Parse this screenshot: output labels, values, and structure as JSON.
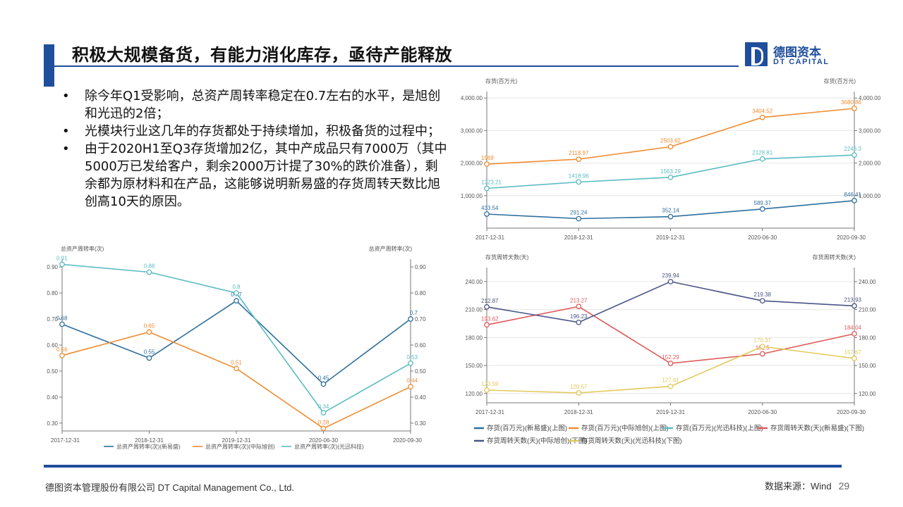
{
  "slide": {
    "title": "积极大规模备货，有能力消化库存，亟待产能释放",
    "logo_cn": "德图资本",
    "logo_en": "DT CAPITAL",
    "bullets": [
      "除今年Q1受影响，总资产周转率稳定在0.7左右的水平，是旭创和光迅的2倍；",
      "光模块行业这几年的存货都处于持续增加，积极备货的过程中；",
      "由于2020H1至Q3存货增加2亿，其中产成品只有7000万（其中5000万已发给客户，剩余2000万计提了30%的跌价准备），剩余都为原材料和在产品，这能够说明新易盛的存货周转天数比旭创高10天的原因。"
    ],
    "footer_left": "德图资本管理股份有限公司  DT Capital  Management  Co., Ltd.",
    "footer_source": "数据来源：Wind",
    "page_number": "29"
  },
  "colors": {
    "brand": "#1f4e9c",
    "dark_blue": "#2e6f9e",
    "orange": "#f08c30",
    "teal": "#5bbcc3",
    "red": "#e05a5a",
    "navy": "#4a5486",
    "yellow": "#e3c95a"
  },
  "chart_data": [
    {
      "id": "turnover",
      "type": "line",
      "ylabel_left": "总资产周转率(次)",
      "ylabel_right": "总资产周转率(次)",
      "categories": [
        "2017-12-31",
        "2018-12-31",
        "2019-12-31",
        "2020-06-30",
        "2020-09-30"
      ],
      "ylim": [
        0.27,
        0.93
      ],
      "yticks": [
        0.3,
        0.4,
        0.5,
        0.6,
        0.7,
        0.8,
        0.9
      ],
      "ytick_labels": [
        "0.30",
        "0.40",
        "0.50",
        "0.60",
        "0.70",
        "0.80",
        "0.90"
      ],
      "legend_position": "bottom",
      "series": [
        {
          "name": "总资产周转率(次)(新易盛)",
          "color": "#2e6f9e",
          "values": [
            0.68,
            0.55,
            0.77,
            0.45,
            0.7
          ],
          "labels": [
            "0.68",
            "0.55",
            "0.77",
            "0.45",
            "0.7"
          ]
        },
        {
          "name": "总资产周转率(次)(中际旭创)",
          "color": "#f08c30",
          "values": [
            0.56,
            0.65,
            0.51,
            0.28,
            0.44
          ],
          "labels": [
            "0.56",
            "0.65",
            "0.51",
            "0.28",
            "0.44"
          ]
        },
        {
          "name": "总资产周转率(次)(光迅科技)",
          "color": "#5bbcc3",
          "values": [
            0.91,
            0.88,
            0.8,
            0.34,
            0.53
          ],
          "labels": [
            "0.91",
            "0.88",
            "0.8",
            "0.34",
            "0.53"
          ]
        }
      ]
    },
    {
      "id": "inventory",
      "type": "line",
      "ylabel_left": "存货(百万元)",
      "ylabel_right": "存货(百万元)",
      "categories": [
        "2017-12-31",
        "2018-12-31",
        "2019-12-31",
        "2020-06-30",
        "2020-09-30"
      ],
      "ylim": [
        0,
        4200
      ],
      "yticks": [
        1000,
        2000,
        3000,
        4000
      ],
      "ytick_labels": [
        "1,000.00",
        "2,000.00",
        "3,000.00",
        "4,000.00"
      ],
      "series": [
        {
          "name": "存货(百万元)(新易盛)(上图)",
          "color": "#2e6f9e",
          "values": [
            433.54,
            291.24,
            352.14,
            589.37,
            846.41
          ],
          "labels": [
            "433.54",
            "291.24",
            "352.14",
            "589.37",
            "846.41"
          ]
        },
        {
          "name": "存货(百万元)(中际旭创)(上图)",
          "color": "#f08c30",
          "values": [
            1969,
            2118.97,
            2503.62,
            3404.52,
            3680.86
          ],
          "labels": [
            "1969",
            "2118.97",
            "2503.62",
            "3404.52",
            "3680.86"
          ]
        },
        {
          "name": "存货(百万元)(光迅科技)(上图)",
          "color": "#5bbcc3",
          "values": [
            1223.21,
            1418.96,
            1563.29,
            2128.81,
            2246.3
          ],
          "labels": [
            "1223.21",
            "1418.96",
            "1563.29",
            "2128.81",
            "2246.3"
          ]
        }
      ]
    },
    {
      "id": "days",
      "type": "line",
      "ylabel_left": "存货周转天数(天)",
      "ylabel_right": "存货周转天数(天)",
      "categories": [
        "2017-12-31",
        "2018-12-31",
        "2019-12-31",
        "2020-06-30",
        "2020-09-30"
      ],
      "ylim": [
        110,
        255
      ],
      "yticks": [
        120,
        150,
        180,
        210,
        240
      ],
      "ytick_labels": [
        "120.00",
        "150.00",
        "180.00",
        "210.00",
        "240.00"
      ],
      "series": [
        {
          "name": "存货周转天数(天)(新易盛)(下图)",
          "color": "#e05a5a",
          "values": [
            193.62,
            213.27,
            152.29,
            162.5,
            184.04
          ],
          "labels": [
            "193.62",
            "213.27",
            "152.29",
            "162.5",
            "184.04"
          ]
        },
        {
          "name": "存货周转天数(天)(中际旭创)(下图)",
          "color": "#4a5486",
          "values": [
            212.87,
            196.23,
            239.94,
            219.38,
            213.93
          ],
          "labels": [
            "212.87",
            "196.23",
            "239.94",
            "219.38",
            "213.93"
          ]
        },
        {
          "name": "存货周转天数(天)(光迅科技)(下图)",
          "color": "#e3c95a",
          "values": [
            123.59,
            120.57,
            127.61,
            170.37,
            157.67
          ],
          "labels": [
            "123.59",
            "120.57",
            "127.61",
            "170.37",
            "157.67"
          ]
        }
      ]
    }
  ],
  "right_legend_rows": [
    [
      0,
      1,
      2,
      3
    ],
    [
      4,
      5
    ]
  ]
}
